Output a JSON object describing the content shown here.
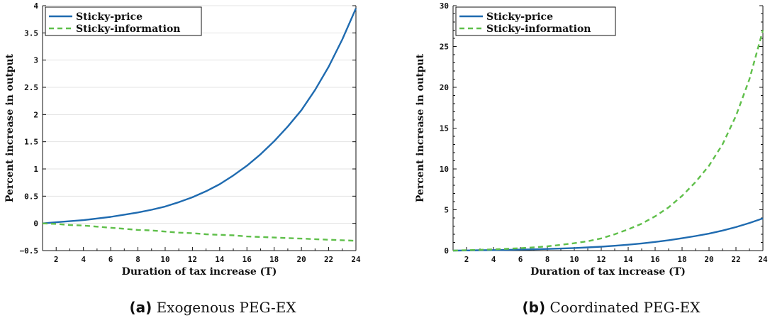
{
  "chart_data": [
    {
      "type": "line",
      "caption_tag": "(a)",
      "caption_text": "Exogenous PEG-EX",
      "xlabel": "Duration of tax increase (T)",
      "ylabel": "Percent increase in output",
      "xlim": [
        1,
        24
      ],
      "ylim": [
        -0.5,
        4
      ],
      "xticks": [
        2,
        4,
        6,
        8,
        10,
        12,
        14,
        16,
        18,
        20,
        22,
        24
      ],
      "yticks": [
        -0.5,
        0,
        0.5,
        1,
        1.5,
        2,
        2.5,
        3,
        3.5,
        4
      ],
      "ytick_labels": [
        "−0.5",
        "0",
        "0.5",
        "1",
        "1.5",
        "2",
        "2.5",
        "3",
        "3.5",
        "4"
      ],
      "grid": "horizontal",
      "legend_position": "top-left",
      "x": [
        1,
        2,
        3,
        4,
        5,
        6,
        7,
        8,
        9,
        10,
        11,
        12,
        13,
        14,
        15,
        16,
        17,
        18,
        19,
        20,
        21,
        22,
        23,
        24
      ],
      "series": [
        {
          "name": "Sticky-price",
          "color": "#1f6bb0",
          "dash": "solid",
          "values": [
            0.0,
            0.02,
            0.04,
            0.06,
            0.09,
            0.12,
            0.16,
            0.2,
            0.25,
            0.31,
            0.39,
            0.48,
            0.59,
            0.72,
            0.88,
            1.06,
            1.27,
            1.51,
            1.78,
            2.08,
            2.45,
            2.88,
            3.38,
            3.95
          ]
        },
        {
          "name": "Sticky-information",
          "color": "#5fbf4a",
          "dash": "dashed",
          "values": [
            0.0,
            -0.01,
            -0.03,
            -0.04,
            -0.06,
            -0.08,
            -0.1,
            -0.12,
            -0.13,
            -0.15,
            -0.17,
            -0.18,
            -0.2,
            -0.21,
            -0.22,
            -0.24,
            -0.25,
            -0.26,
            -0.27,
            -0.28,
            -0.29,
            -0.3,
            -0.31,
            -0.32
          ]
        }
      ]
    },
    {
      "type": "line",
      "caption_tag": "(b)",
      "caption_text": "Coordinated PEG-EX",
      "xlabel": "Duration of tax increase (T)",
      "ylabel": "Percent increase in output",
      "xlim": [
        1,
        24
      ],
      "ylim": [
        0,
        30
      ],
      "xticks": [
        2,
        4,
        6,
        8,
        10,
        12,
        14,
        16,
        18,
        20,
        22,
        24
      ],
      "yticks": [
        0,
        5,
        10,
        15,
        20,
        25,
        30
      ],
      "ytick_labels": [
        "0",
        "5",
        "10",
        "15",
        "20",
        "25",
        "30"
      ],
      "grid": "none",
      "legend_position": "top-left",
      "x": [
        1,
        2,
        3,
        4,
        5,
        6,
        7,
        8,
        9,
        10,
        11,
        12,
        13,
        14,
        15,
        16,
        17,
        18,
        19,
        20,
        21,
        22,
        23,
        24
      ],
      "series": [
        {
          "name": "Sticky-price",
          "color": "#1f6bb0",
          "dash": "solid",
          "values": [
            0.0,
            0.02,
            0.04,
            0.06,
            0.09,
            0.12,
            0.16,
            0.2,
            0.25,
            0.31,
            0.39,
            0.48,
            0.59,
            0.72,
            0.88,
            1.06,
            1.27,
            1.51,
            1.78,
            2.08,
            2.45,
            2.88,
            3.38,
            3.95
          ]
        },
        {
          "name": "Sticky-information",
          "color": "#5fbf4a",
          "dash": "dashed",
          "values": [
            0.0,
            0.05,
            0.1,
            0.15,
            0.22,
            0.3,
            0.4,
            0.52,
            0.7,
            0.9,
            1.15,
            1.5,
            2.0,
            2.6,
            3.3,
            4.2,
            5.3,
            6.7,
            8.4,
            10.4,
            13.0,
            16.5,
            21.0,
            27.0
          ]
        }
      ]
    }
  ]
}
